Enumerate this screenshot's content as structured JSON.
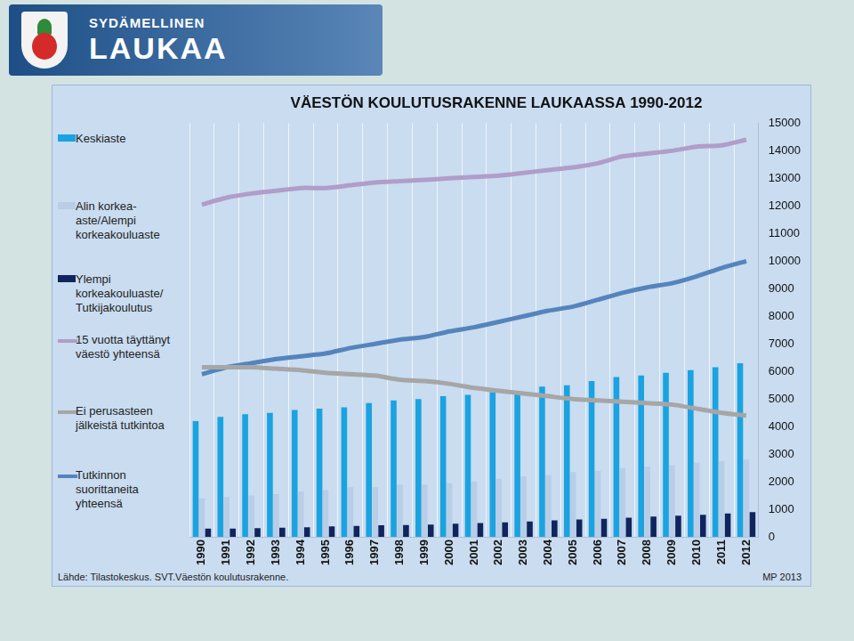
{
  "header": {
    "lines": [
      "SYDÄMELLINEN",
      "LAUKAA"
    ]
  },
  "chart_data": {
    "type": "bar",
    "title": "VÄESTÖN KOULUTUSRAKENNE LAUKAASSA 1990-2012",
    "annotations": [
      "Lähde: Tilastokeskus. SVT.Väestön koulutusrakenne.",
      "MP 2013"
    ],
    "categories": [
      "1990",
      "1991",
      "1992",
      "1993",
      "1994",
      "1995",
      "1996",
      "1997",
      "1998",
      "1999",
      "2000",
      "2001",
      "2002",
      "2003",
      "2004",
      "2005",
      "2006",
      "2007",
      "2008",
      "2009",
      "2010",
      "2011",
      "2012"
    ],
    "series": [
      {
        "name": "Keskiaste",
        "type": "bar",
        "color": "#1aa3e0",
        "values": [
          4200,
          4350,
          4450,
          4500,
          4600,
          4650,
          4700,
          4850,
          4950,
          5000,
          5100,
          5150,
          5250,
          5300,
          5450,
          5500,
          5650,
          5800,
          5850,
          5950,
          6050,
          6150,
          6300
        ]
      },
      {
        "name": "Alin korkea-aste/Alempi korkeakouluaste",
        "type": "bar",
        "color": "#b9cde6",
        "values": [
          1400,
          1450,
          1500,
          1550,
          1650,
          1700,
          1800,
          1800,
          1900,
          1900,
          1950,
          2000,
          2100,
          2200,
          2250,
          2350,
          2400,
          2500,
          2550,
          2600,
          2700,
          2750,
          2800
        ]
      },
      {
        "name": "Ylempi korkeakouluaste/ Tutkijakoulutus",
        "type": "bar",
        "color": "#10245e",
        "values": [
          300,
          300,
          320,
          330,
          350,
          380,
          400,
          420,
          430,
          450,
          480,
          500,
          530,
          560,
          600,
          630,
          660,
          700,
          740,
          770,
          800,
          850,
          900
        ]
      },
      {
        "name": "15 vuotta täyttänyt väestö yhteensä",
        "type": "line",
        "color": "#b19dc9",
        "values": [
          12050,
          12300,
          12450,
          12550,
          12650,
          12650,
          12750,
          12850,
          12900,
          12950,
          13000,
          13050,
          13100,
          13200,
          13300,
          13400,
          13550,
          13800,
          13900,
          14000,
          14150,
          14200,
          14400
        ]
      },
      {
        "name": "Ei perusasteen jälkeistä tutkintoa",
        "type": "line",
        "color": "#a6a6a6",
        "values": [
          6150,
          6150,
          6150,
          6100,
          6050,
          5950,
          5900,
          5850,
          5700,
          5650,
          5550,
          5400,
          5300,
          5200,
          5100,
          5000,
          4950,
          4900,
          4850,
          4800,
          4650,
          4500,
          4400
        ]
      },
      {
        "name": "Tutkinnon suorittaneita yhteensä",
        "type": "line",
        "color": "#5584bd",
        "values": [
          5900,
          6150,
          6300,
          6450,
          6550,
          6650,
          6850,
          7000,
          7150,
          7250,
          7450,
          7600,
          7800,
          8000,
          8200,
          8350,
          8600,
          8850,
          9050,
          9200,
          9450,
          9750,
          10000
        ]
      }
    ],
    "ylim": [
      0,
      15000
    ],
    "yticks": [
      0,
      1000,
      2000,
      3000,
      4000,
      5000,
      6000,
      7000,
      8000,
      9000,
      10000,
      11000,
      12000,
      13000,
      14000,
      15000
    ],
    "grid": true,
    "legend": "left"
  }
}
